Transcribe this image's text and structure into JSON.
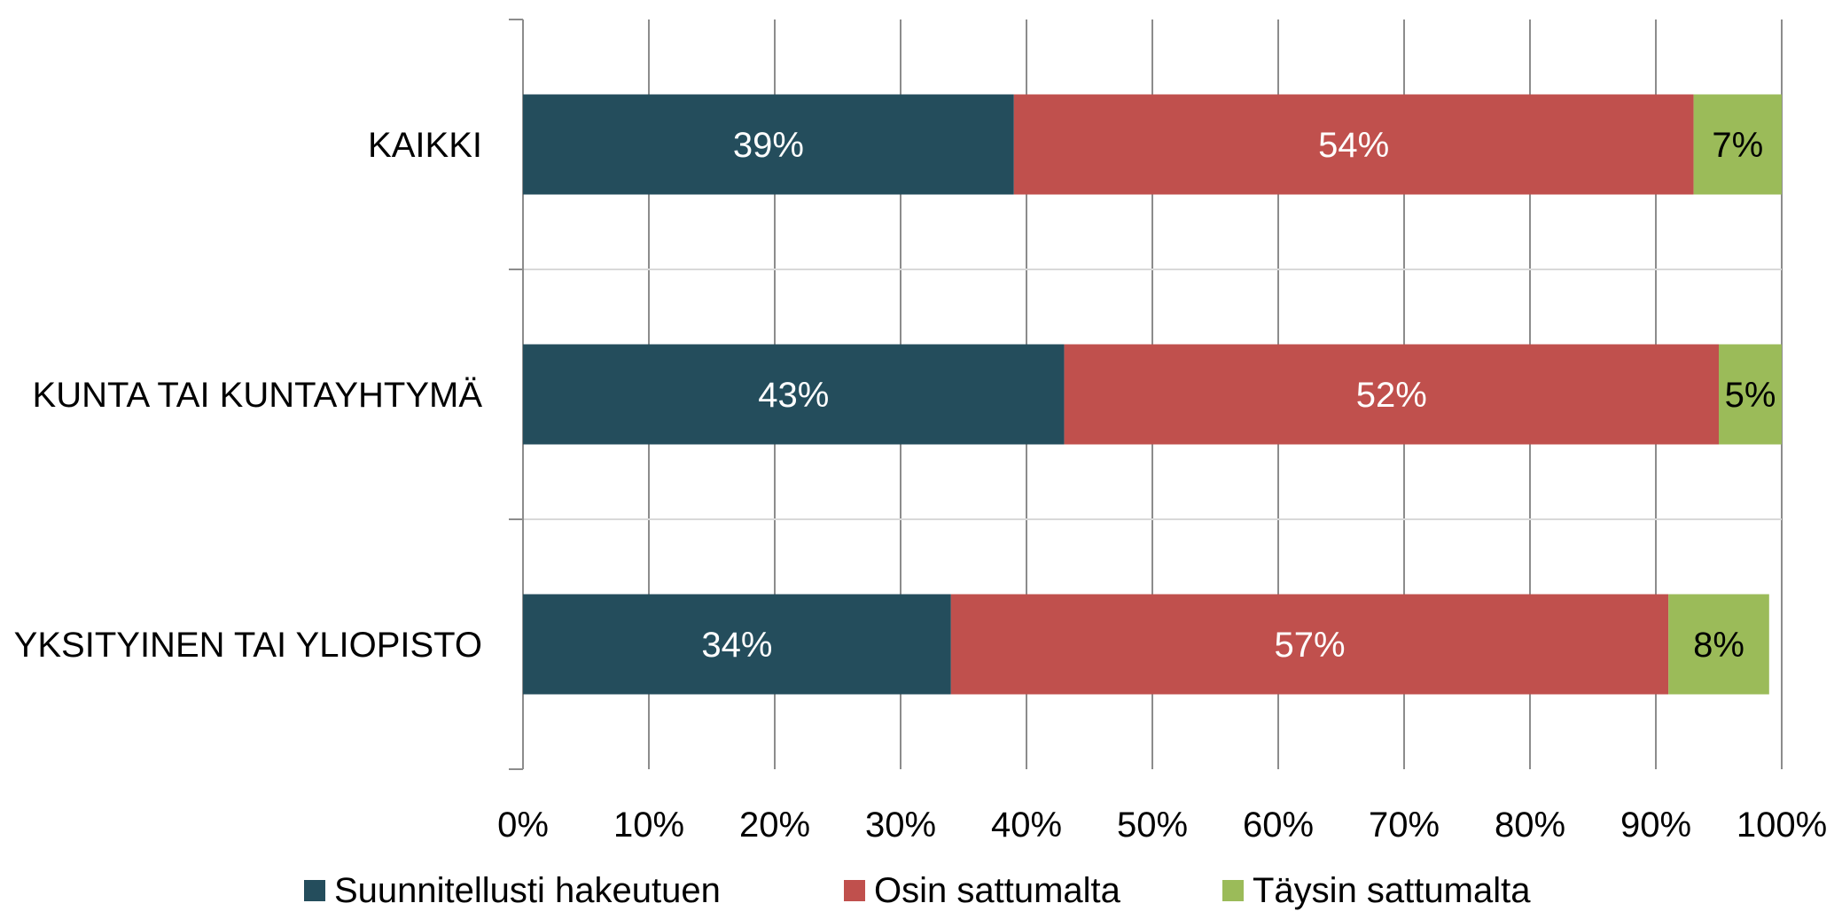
{
  "chart_data": {
    "type": "bar",
    "orientation": "horizontal",
    "stacked": "percent",
    "categories": [
      "KAIKKI",
      "KUNTA TAI KUNTAYHTYMÄ",
      "YKSITYINEN TAI YLIOPISTO"
    ],
    "series": [
      {
        "name": "Suunnitellusti hakeutuen",
        "color": "#244d5c",
        "label_color": "#ffffff",
        "values": [
          39,
          43,
          34
        ],
        "labels": [
          "39%",
          "43%",
          "34%"
        ]
      },
      {
        "name": "Osin sattumalta",
        "color": "#c0504d",
        "label_color": "#ffffff",
        "values": [
          54,
          52,
          57
        ],
        "labels": [
          "54%",
          "52%",
          "57%"
        ]
      },
      {
        "name": "Täysin sattumalta",
        "color": "#9bbb59",
        "label_color": "#000000",
        "values": [
          7,
          5,
          8
        ],
        "labels": [
          "7%",
          "5%",
          "8%"
        ]
      }
    ],
    "xlim": [
      0,
      100
    ],
    "xticks": [
      "0%",
      "10%",
      "20%",
      "30%",
      "40%",
      "50%",
      "60%",
      "70%",
      "80%",
      "90%",
      "100%"
    ],
    "title": "",
    "xlabel": "",
    "ylabel": "",
    "grid": true,
    "legend": "bottom"
  }
}
